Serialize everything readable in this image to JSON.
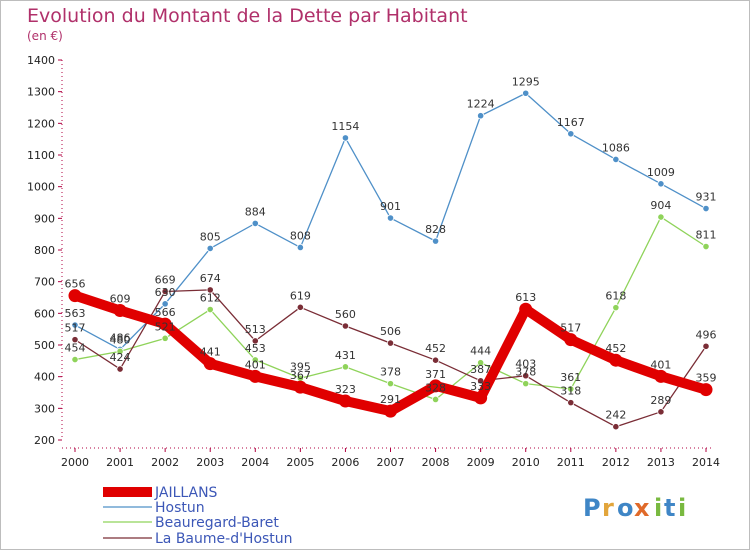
{
  "chart_data": {
    "type": "line",
    "title": "Evolution du Montant de la Dette par Habitant",
    "unit": "(en €)",
    "x": [
      "2000",
      "2001",
      "2002",
      "2003",
      "2004",
      "2005",
      "2006",
      "2007",
      "2008",
      "2009",
      "2010",
      "2011",
      "2012",
      "2013",
      "2014"
    ],
    "ylim": [
      200,
      1400
    ],
    "yticks": [
      200,
      300,
      400,
      500,
      600,
      700,
      800,
      900,
      1000,
      1100,
      1200,
      1300,
      1400
    ],
    "grid": false,
    "legend_position": "bottom-left",
    "series": [
      {
        "name": "JAILLANS",
        "color": "#e00000",
        "values": [
          656,
          609,
          566,
          441,
          401,
          367,
          323,
          291,
          371,
          333,
          613,
          517,
          452,
          401,
          359
        ]
      },
      {
        "name": "Hostun",
        "color": "#4f90c8",
        "values": [
          563,
          486,
          630,
          805,
          884,
          808,
          1154,
          901,
          828,
          1224,
          1295,
          1167,
          1086,
          1009,
          931
        ]
      },
      {
        "name": "Beauregard-Baret",
        "color": "#8fd35a",
        "values": [
          454,
          480,
          521,
          612,
          453,
          395,
          431,
          378,
          328,
          444,
          378,
          361,
          618,
          904,
          811
        ]
      },
      {
        "name": "La Baume-d'Hostun",
        "color": "#7a2d36",
        "values": [
          517,
          424,
          669,
          674,
          513,
          619,
          560,
          506,
          452,
          387,
          403,
          318,
          242,
          289,
          496
        ]
      }
    ]
  },
  "logo_text": "Proxiti"
}
